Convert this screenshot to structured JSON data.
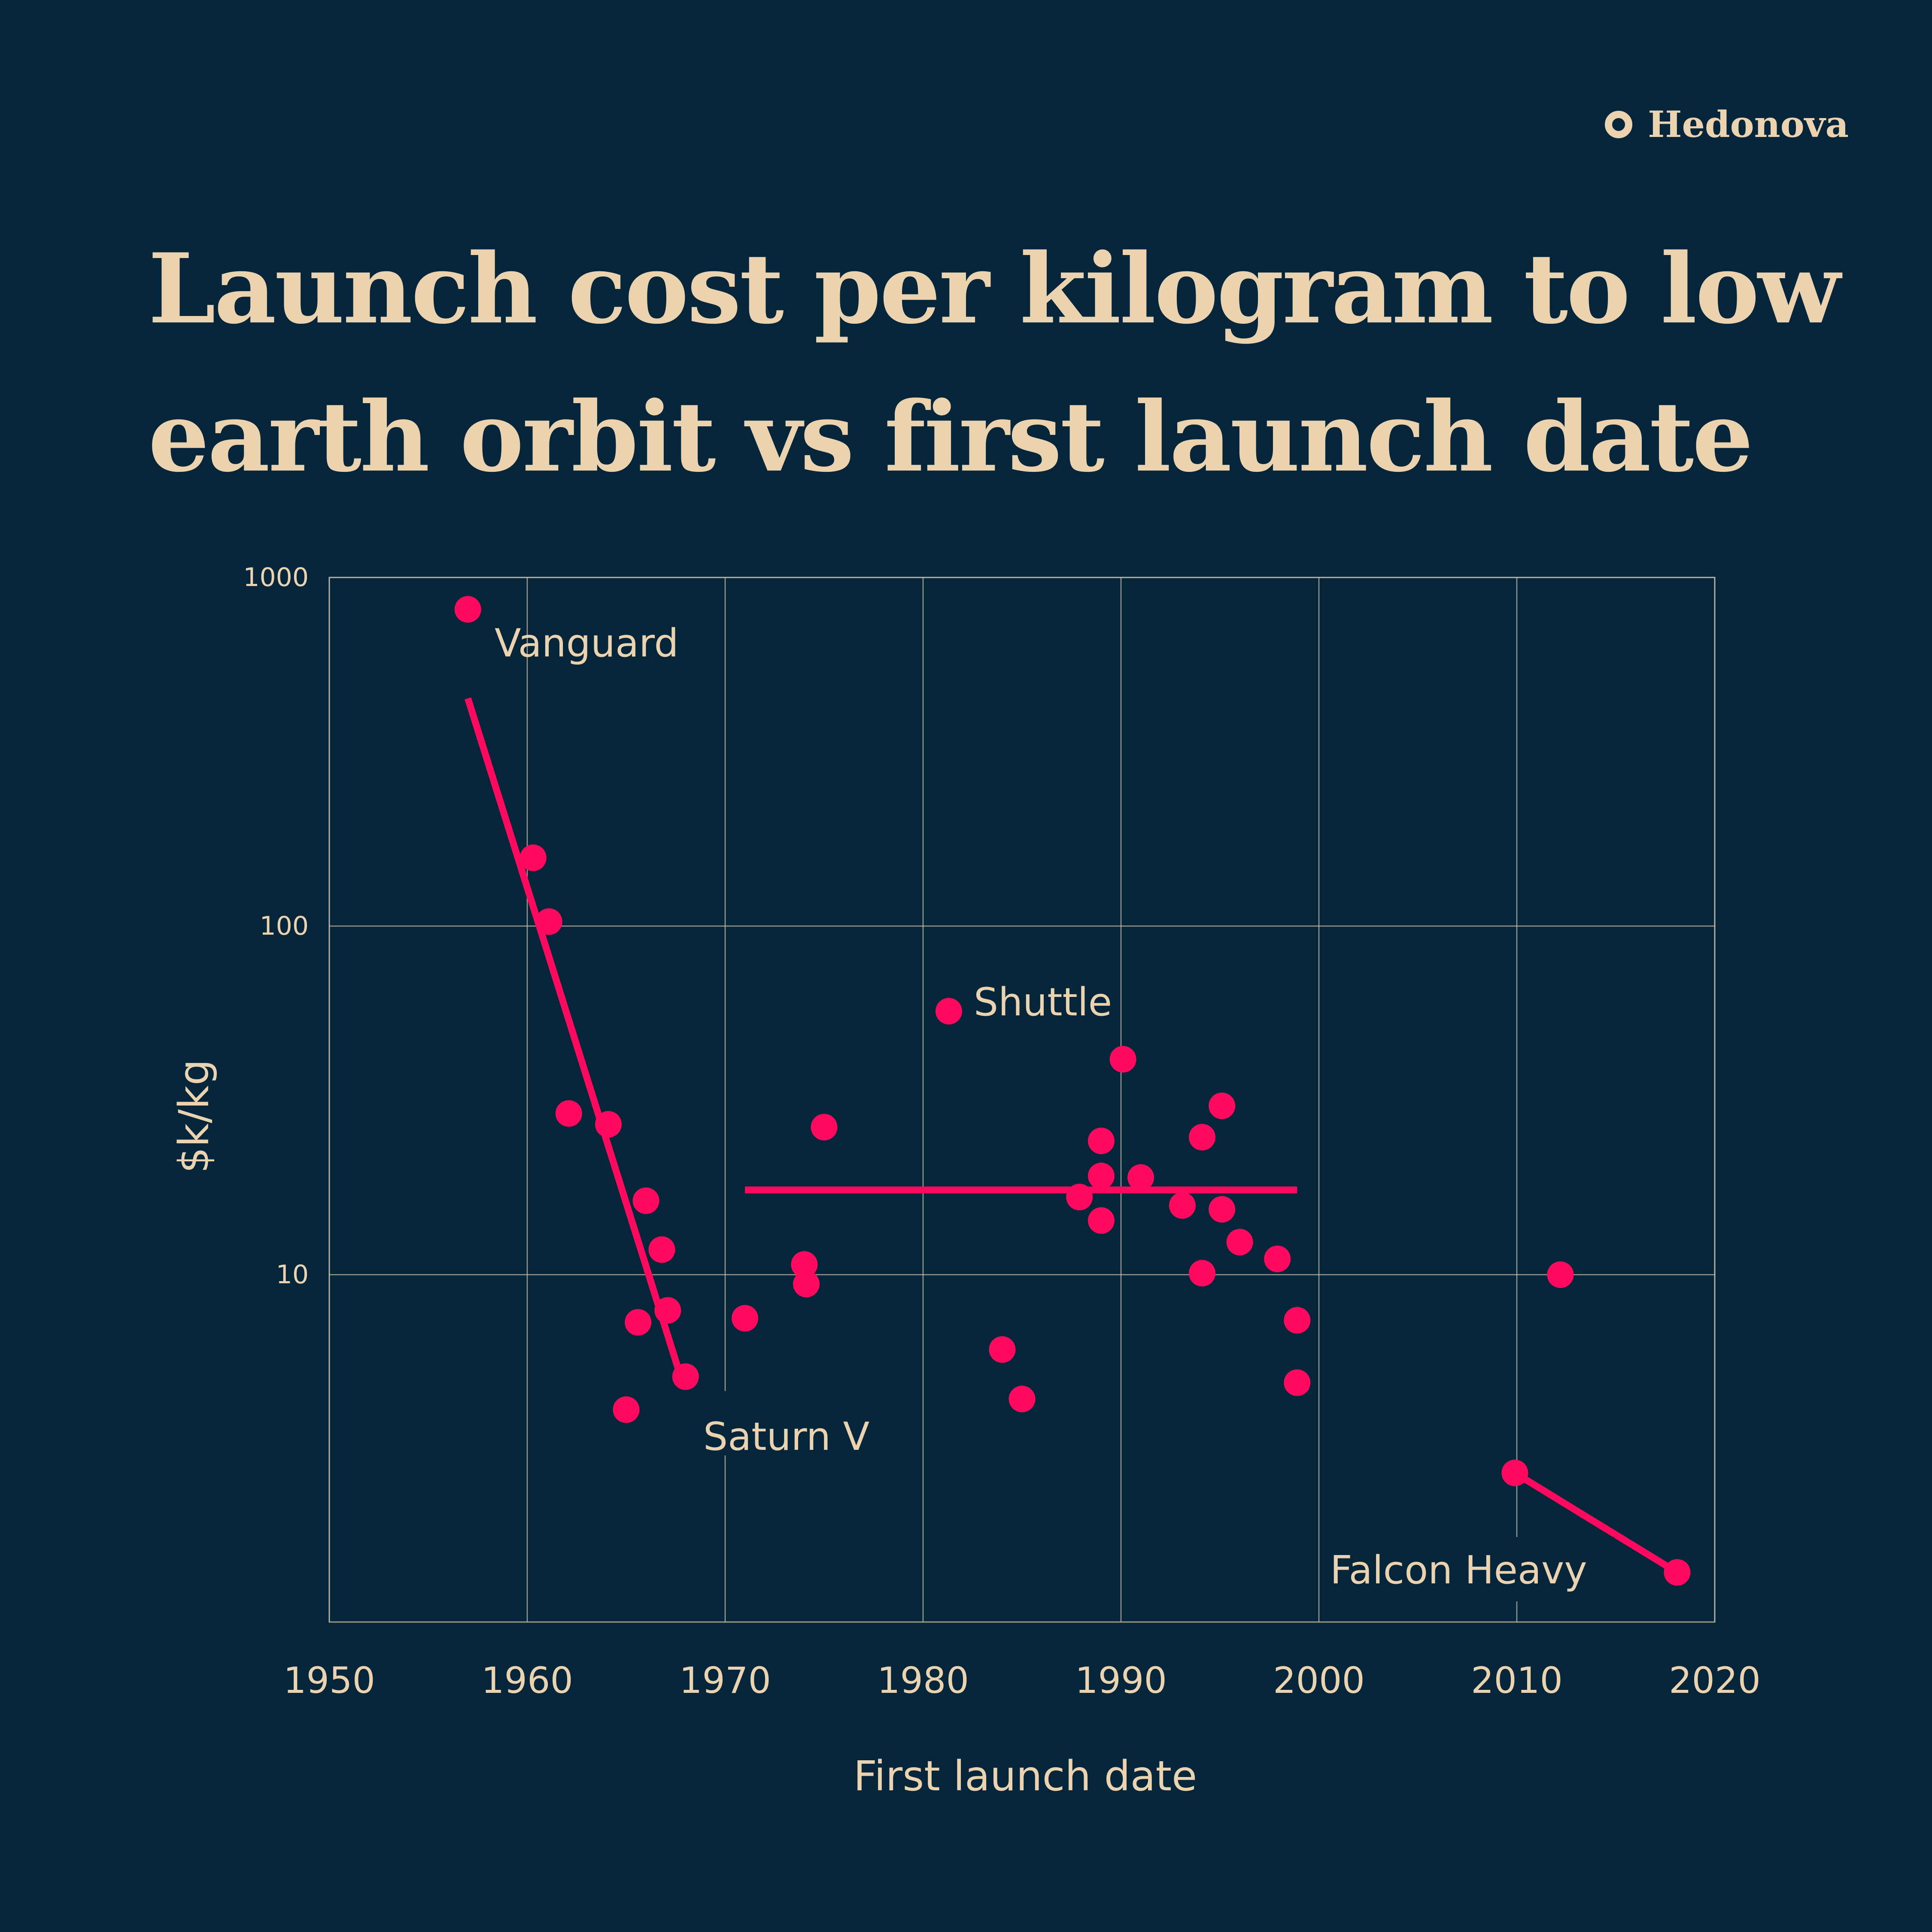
{
  "brand": {
    "name": "Hedonova",
    "icon": "ring-logo-icon"
  },
  "title": "Launch cost per kilogram to low earth orbit vs first launch date",
  "colors": {
    "background": "#05263a",
    "text": "#ead3ae",
    "accent": "#ff0a5e",
    "grid": "#c9bfa8"
  },
  "chart_data": {
    "type": "scatter",
    "xlabel": "First launch date",
    "ylabel": "$k/kg",
    "xscale": "linear",
    "yscale": "log",
    "xlim": [
      1950,
      2020
    ],
    "ylim": [
      1.35,
      1000
    ],
    "x_ticks": [
      "1950",
      "1960",
      "1970",
      "1980",
      "1990",
      "2000",
      "2010",
      "2020"
    ],
    "y_ticks": [
      "1000",
      "100",
      "10"
    ],
    "grid": true,
    "points": [
      {
        "x": 1957.0,
        "y": 810
      },
      {
        "x": 1960.3,
        "y": 157
      },
      {
        "x": 1961.1,
        "y": 103
      },
      {
        "x": 1962.1,
        "y": 29
      },
      {
        "x": 1964.1,
        "y": 27
      },
      {
        "x": 1965.0,
        "y": 4.1
      },
      {
        "x": 1965.6,
        "y": 7.3
      },
      {
        "x": 1966.0,
        "y": 16.3
      },
      {
        "x": 1966.8,
        "y": 11.8
      },
      {
        "x": 1967.1,
        "y": 7.9
      },
      {
        "x": 1968.0,
        "y": 5.1
      },
      {
        "x": 1971.0,
        "y": 7.5
      },
      {
        "x": 1974.0,
        "y": 10.7
      },
      {
        "x": 1974.1,
        "y": 9.4
      },
      {
        "x": 1975.0,
        "y": 26.5
      },
      {
        "x": 1981.3,
        "y": 57
      },
      {
        "x": 1984.0,
        "y": 6.1
      },
      {
        "x": 1985.0,
        "y": 4.4
      },
      {
        "x": 1987.9,
        "y": 16.7
      },
      {
        "x": 1989.0,
        "y": 24.2
      },
      {
        "x": 1989.0,
        "y": 19.2
      },
      {
        "x": 1989.0,
        "y": 14.3
      },
      {
        "x": 1990.1,
        "y": 41.5
      },
      {
        "x": 1991.0,
        "y": 19
      },
      {
        "x": 1993.1,
        "y": 15.8
      },
      {
        "x": 1994.1,
        "y": 24.8
      },
      {
        "x": 1994.1,
        "y": 10.1
      },
      {
        "x": 1995.1,
        "y": 30.5
      },
      {
        "x": 1995.1,
        "y": 15.4
      },
      {
        "x": 1996.0,
        "y": 12.4
      },
      {
        "x": 1997.9,
        "y": 11.1
      },
      {
        "x": 1998.9,
        "y": 7.4
      },
      {
        "x": 1998.9,
        "y": 4.9
      },
      {
        "x": 2009.9,
        "y": 2.7
      },
      {
        "x": 2012.2,
        "y": 10
      },
      {
        "x": 2018.1,
        "y": 1.4
      }
    ],
    "trend_lines": [
      {
        "from": {
          "x": 1957.0,
          "y": 450
        },
        "to": {
          "x": 1967.8,
          "y": 5.0
        }
      },
      {
        "from": {
          "x": 1971.0,
          "y": 17.5
        },
        "to": {
          "x": 1998.9,
          "y": 17.5
        }
      },
      {
        "from": {
          "x": 2009.9,
          "y": 2.7
        },
        "to": {
          "x": 2018.1,
          "y": 1.4
        }
      }
    ],
    "annotations": [
      {
        "text": "Vanguard"
      },
      {
        "text": "Shuttle"
      },
      {
        "text": "Saturn V"
      },
      {
        "text": "Falcon Heavy"
      }
    ]
  }
}
